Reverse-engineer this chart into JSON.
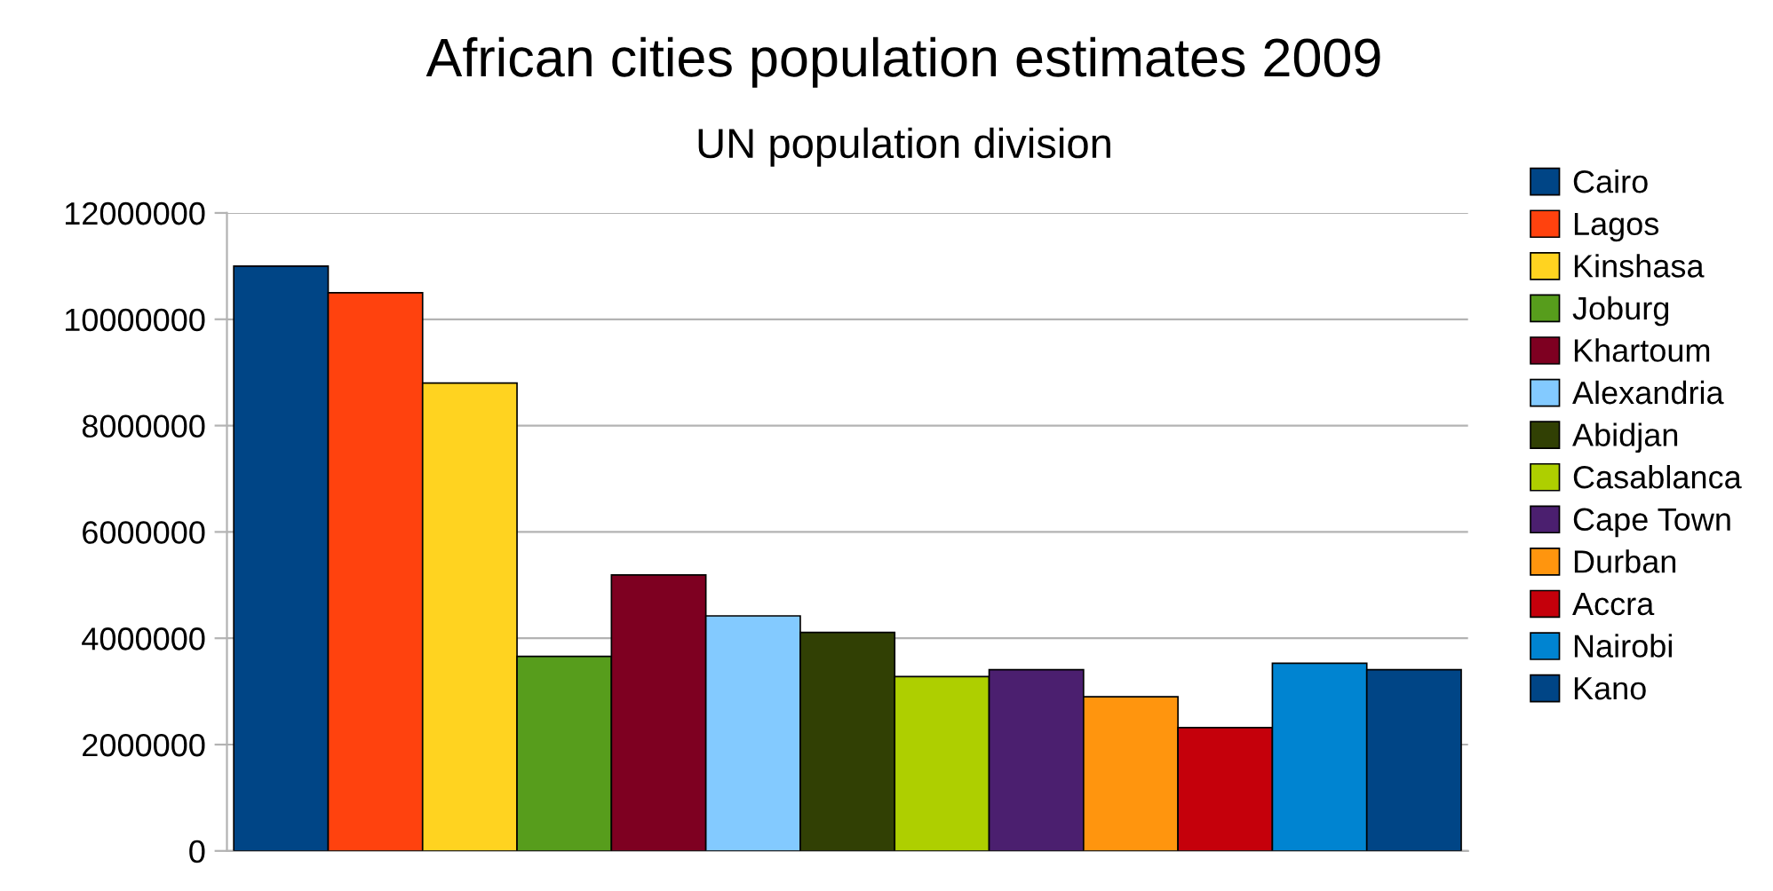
{
  "chart_data": {
    "type": "bar",
    "title": "African cities population estimates 2009",
    "subtitle": "UN population division",
    "categories": [
      null
    ],
    "series": [
      {
        "name": "Cairo",
        "color": "#004586",
        "values": [
          11000000
        ]
      },
      {
        "name": "Lagos",
        "color": "#ff420e",
        "values": [
          10500000
        ]
      },
      {
        "name": "Kinshasa",
        "color": "#ffd320",
        "values": [
          8800000
        ]
      },
      {
        "name": "Joburg",
        "color": "#579d1c",
        "values": [
          3660000
        ]
      },
      {
        "name": "Khartoum",
        "color": "#7e0021",
        "values": [
          5190000
        ]
      },
      {
        "name": "Alexandria",
        "color": "#83caff",
        "values": [
          4420000
        ]
      },
      {
        "name": "Abidjan",
        "color": "#314004",
        "values": [
          4110000
        ]
      },
      {
        "name": "Casablanca",
        "color": "#aecf00",
        "values": [
          3280000
        ]
      },
      {
        "name": "Cape Town",
        "color": "#4b1f6f",
        "values": [
          3410000
        ]
      },
      {
        "name": "Durban",
        "color": "#ff950e",
        "values": [
          2900000
        ]
      },
      {
        "name": "Accra",
        "color": "#c5000b",
        "values": [
          2320000
        ]
      },
      {
        "name": "Nairobi",
        "color": "#0084d1",
        "values": [
          3530000
        ]
      },
      {
        "name": "Kano",
        "color": "#004586",
        "values": [
          3410000
        ]
      }
    ],
    "ylim": [
      0,
      12000000
    ],
    "yticks": [
      0,
      2000000,
      4000000,
      6000000,
      8000000,
      10000000,
      12000000
    ],
    "grid": "y",
    "legend": "right"
  }
}
